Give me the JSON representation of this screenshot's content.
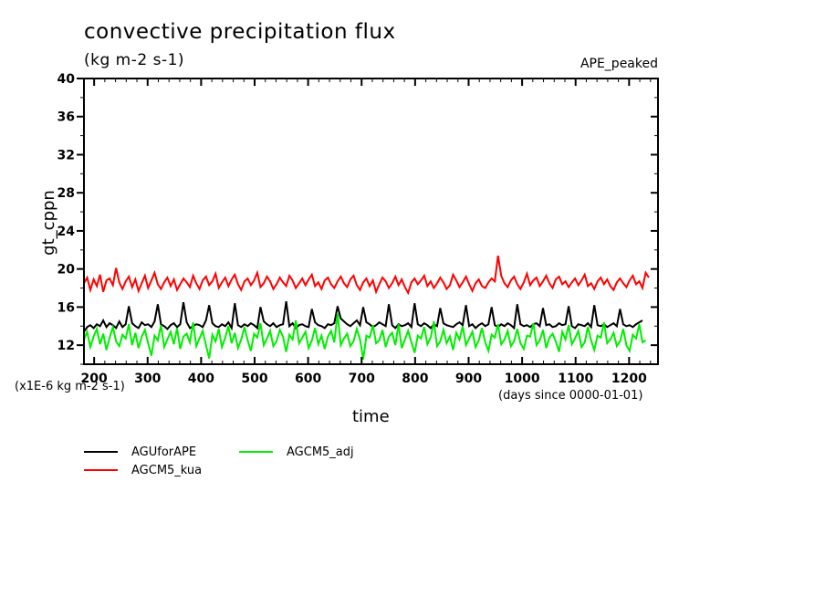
{
  "header": {
    "title": "convective precipitation flux",
    "units": "(kg m-2 s-1)",
    "experiment": "APE_peaked"
  },
  "chart_data": {
    "type": "line",
    "title": "convective precipitation flux",
    "subtitle": "(kg m-2 s-1)",
    "annotation_top_right": "APE_peaked",
    "xlabel": "time",
    "xlabel_note": "(days since 0000-01-01)",
    "ylabel": "gt_cppn",
    "ylabel_note": "(x1E-6 kg m-2 s-1)",
    "xlim": [
      181,
      1254
    ],
    "ylim": [
      10,
      40
    ],
    "xticks": [
      200,
      300,
      400,
      500,
      600,
      700,
      800,
      900,
      1000,
      1100,
      1200
    ],
    "xtick_labels": [
      "200",
      "300",
      "400",
      "500",
      "600",
      "700",
      "800",
      "900",
      "1000",
      "1100",
      "1200"
    ],
    "yticks": [
      12,
      16,
      20,
      24,
      28,
      32,
      36,
      40
    ],
    "ytick_labels": [
      "12",
      "16",
      "20",
      "24",
      "28",
      "32",
      "36",
      "40"
    ],
    "grid": false,
    "legend_position": "bottom-left",
    "x_start": 181,
    "x_step": 6,
    "series": [
      {
        "name": "AGUforAPE",
        "color": "#000000",
        "values": [
          13.4,
          13.9,
          14.1,
          13.8,
          14.2,
          14.0,
          14.6,
          13.9,
          14.3,
          14.1,
          13.8,
          14.5,
          13.9,
          14.2,
          16.1,
          14.3,
          14.0,
          13.8,
          14.4,
          14.1,
          14.2,
          13.9,
          14.5,
          16.3,
          14.2,
          14.0,
          13.7,
          14.1,
          14.3,
          13.9,
          14.2,
          16.5,
          14.4,
          13.8,
          14.0,
          14.2,
          14.1,
          13.9,
          14.6,
          16.2,
          14.3,
          14.0,
          13.9,
          14.2,
          14.0,
          14.4,
          13.8,
          16.4,
          14.1,
          13.9,
          14.2,
          14.0,
          14.3,
          14.1,
          13.8,
          16.0,
          14.5,
          14.2,
          14.0,
          14.3,
          13.9,
          14.1,
          14.2,
          16.6,
          14.0,
          14.3,
          13.8,
          14.1,
          14.2,
          14.0,
          13.9,
          15.8,
          14.4,
          14.1,
          14.0,
          13.8,
          14.2,
          14.1,
          14.3,
          16.1,
          14.8,
          14.5,
          14.2,
          14.0,
          14.3,
          14.6,
          14.1,
          16.0,
          14.4,
          14.2,
          13.9,
          14.1,
          14.4,
          14.2,
          14.0,
          16.3,
          14.1,
          13.8,
          14.2,
          14.0,
          14.1,
          14.3,
          13.9,
          16.4,
          14.2,
          14.0,
          14.3,
          14.1,
          13.8,
          14.2,
          14.0,
          15.9,
          14.3,
          14.1,
          14.0,
          13.9,
          14.2,
          14.4,
          14.1,
          16.2,
          14.0,
          14.2,
          13.8,
          14.1,
          14.3,
          14.0,
          14.2,
          16.0,
          14.1,
          13.9,
          14.2,
          14.0,
          14.3,
          14.1,
          13.8,
          16.3,
          14.2,
          14.0,
          14.1,
          13.9,
          14.2,
          14.3,
          14.0,
          15.9,
          14.1,
          14.2,
          13.9,
          14.0,
          14.3,
          14.1,
          14.2,
          16.1,
          14.0,
          13.8,
          14.2,
          14.1,
          14.0,
          14.3,
          13.9,
          16.2,
          14.1,
          14.0,
          14.2,
          13.9,
          14.1,
          14.3,
          14.0,
          15.8,
          14.2,
          14.0,
          14.1,
          13.9,
          14.2,
          14.4,
          14.6
        ]
      },
      {
        "name": "AGCM5_kua",
        "color": "#ff0000",
        "values": [
          18.5,
          19.1,
          17.8,
          18.9,
          18.2,
          19.4,
          17.6,
          18.8,
          19.0,
          18.3,
          20.1,
          18.6,
          17.9,
          18.7,
          19.2,
          18.1,
          18.9,
          17.7,
          18.5,
          19.3,
          18.0,
          18.8,
          19.6,
          18.4,
          17.9,
          18.6,
          19.1,
          18.2,
          18.9,
          17.8,
          18.4,
          19.0,
          18.6,
          18.1,
          19.3,
          18.5,
          17.9,
          18.8,
          19.2,
          18.3,
          18.7,
          19.5,
          18.0,
          18.6,
          19.1,
          18.2,
          18.9,
          19.4,
          18.4,
          17.8,
          18.7,
          19.0,
          18.3,
          18.8,
          19.6,
          18.1,
          18.5,
          19.2,
          18.7,
          17.9,
          18.4,
          19.1,
          18.6,
          18.2,
          19.3,
          18.8,
          18.0,
          18.5,
          19.0,
          18.3,
          18.9,
          19.4,
          18.2,
          18.6,
          17.9,
          18.8,
          19.1,
          18.4,
          18.0,
          18.7,
          19.2,
          18.5,
          18.1,
          18.9,
          19.3,
          18.3,
          17.8,
          18.6,
          19.0,
          18.2,
          18.8,
          17.6,
          18.4,
          19.1,
          18.7,
          18.0,
          18.5,
          19.2,
          18.3,
          18.9,
          18.1,
          17.5,
          18.6,
          19.0,
          18.4,
          18.8,
          19.3,
          18.2,
          18.7,
          18.0,
          18.5,
          19.1,
          18.6,
          17.9,
          18.3,
          19.4,
          18.8,
          18.1,
          18.6,
          19.2,
          18.4,
          17.7,
          18.5,
          18.9,
          18.2,
          18.0,
          18.6,
          19.0,
          18.7,
          21.4,
          19.3,
          18.5,
          18.1,
          18.8,
          19.2,
          18.4,
          17.9,
          18.6,
          19.5,
          18.3,
          18.8,
          19.1,
          18.2,
          18.7,
          19.3,
          18.5,
          18.0,
          18.9,
          19.2,
          18.4,
          18.7,
          18.1,
          18.6,
          19.0,
          18.3,
          18.8,
          19.4,
          18.2,
          18.5,
          17.9,
          18.7,
          19.1,
          18.4,
          18.9,
          18.2,
          17.8,
          18.6,
          19.0,
          18.5,
          18.1,
          18.8,
          19.3,
          18.4,
          18.7,
          18.0,
          19.6,
          19.1
        ]
      },
      {
        "name": "AGCM5_adj",
        "color": "#00ee00",
        "values": [
          12.6,
          13.4,
          11.8,
          12.9,
          13.7,
          12.1,
          13.2,
          11.5,
          12.8,
          13.9,
          12.4,
          11.9,
          13.1,
          12.7,
          14.2,
          12.0,
          13.3,
          11.7,
          12.9,
          13.6,
          12.2,
          10.9,
          13.0,
          12.5,
          14.1,
          11.8,
          12.6,
          13.4,
          12.1,
          13.8,
          11.6,
          12.9,
          13.2,
          12.3,
          14.4,
          11.9,
          12.7,
          13.5,
          12.0,
          10.6,
          13.1,
          12.4,
          13.7,
          11.8,
          12.8,
          14.0,
          12.2,
          13.3,
          11.7,
          12.6,
          13.9,
          12.5,
          11.4,
          13.2,
          12.8,
          14.3,
          12.0,
          12.7,
          13.5,
          11.9,
          12.4,
          13.6,
          12.9,
          11.3,
          13.1,
          12.6,
          14.6,
          12.2,
          12.8,
          13.4,
          11.7,
          12.5,
          13.8,
          12.1,
          13.0,
          11.6,
          12.9,
          13.5,
          12.3,
          15.3,
          12.0,
          12.7,
          13.2,
          11.9,
          12.4,
          13.7,
          12.6,
          10.5,
          13.0,
          12.8,
          14.1,
          12.2,
          12.5,
          13.6,
          11.8,
          12.9,
          13.3,
          12.0,
          14.2,
          11.7,
          12.6,
          13.5,
          12.3,
          11.2,
          13.0,
          12.7,
          13.9,
          12.1,
          12.8,
          14.5,
          11.9,
          12.4,
          13.6,
          12.2,
          12.9,
          11.5,
          13.3,
          12.6,
          14.0,
          12.0,
          12.7,
          13.4,
          11.8,
          12.5,
          13.8,
          12.3,
          11.4,
          13.1,
          12.8,
          14.2,
          12.1,
          12.6,
          13.5,
          11.9,
          12.4,
          13.7,
          12.2,
          11.6,
          13.0,
          12.9,
          14.3,
          12.0,
          12.5,
          13.6,
          11.7,
          12.8,
          13.2,
          12.4,
          11.3,
          13.4,
          12.6,
          14.1,
          12.1,
          12.7,
          13.5,
          11.8,
          12.3,
          13.9,
          12.5,
          11.5,
          13.0,
          12.8,
          14.4,
          12.2,
          12.6,
          13.3,
          11.9,
          12.4,
          13.7,
          12.0,
          11.4,
          13.1,
          12.7,
          14.2,
          12.3,
          12.5
        ]
      }
    ]
  }
}
